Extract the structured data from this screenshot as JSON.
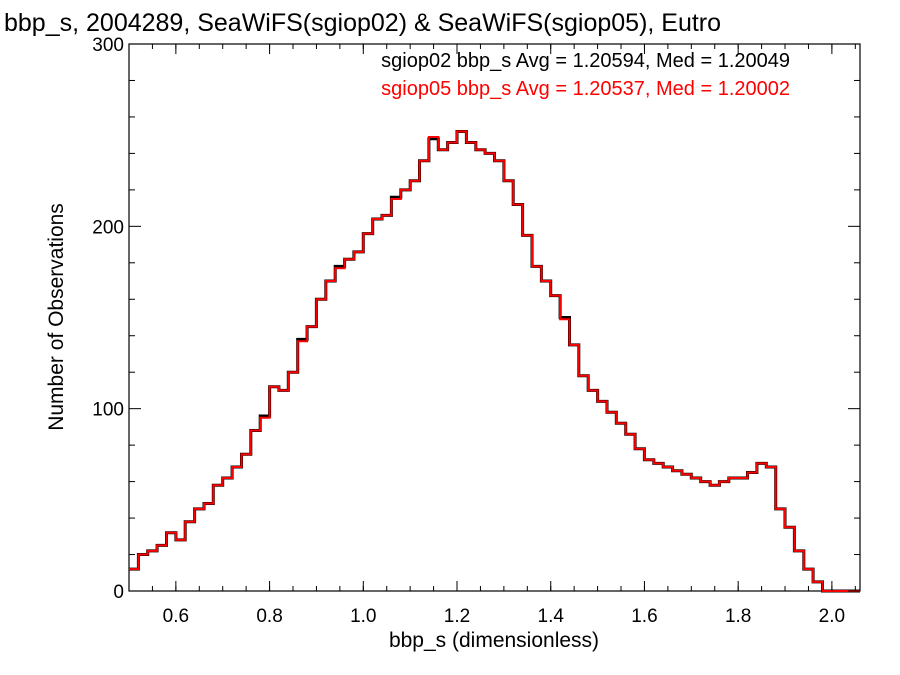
{
  "chart_data": {
    "type": "line",
    "step": true,
    "title": "bbp_s, 2004289, SeaWiFS(sgiop02) & SeaWiFS(sgiop05), Eutro",
    "xlabel": "bbp_s (dimensionless)",
    "ylabel": "Number of Observations",
    "xlim": [
      0.5,
      2.06
    ],
    "ylim": [
      0,
      300
    ],
    "xticks": [
      "0.6",
      "0.8",
      "1.0",
      "1.2",
      "1.4",
      "1.6",
      "1.8",
      "2.0"
    ],
    "yticks": [
      "0",
      "100",
      "200",
      "300"
    ],
    "grid": false,
    "legend_position": "top-right",
    "series": [
      {
        "name": "sgiop02",
        "color": "#000000",
        "legend_text": "sgiop02 bbp_s Avg = 1.20594, Med = 1.20049",
        "x": [
          0.5,
          0.52,
          0.54,
          0.56,
          0.58,
          0.6,
          0.62,
          0.64,
          0.66,
          0.68,
          0.7,
          0.72,
          0.74,
          0.76,
          0.78,
          0.8,
          0.82,
          0.84,
          0.86,
          0.88,
          0.9,
          0.92,
          0.94,
          0.96,
          0.98,
          1.0,
          1.02,
          1.04,
          1.06,
          1.08,
          1.1,
          1.12,
          1.14,
          1.16,
          1.18,
          1.2,
          1.22,
          1.24,
          1.26,
          1.28,
          1.3,
          1.32,
          1.34,
          1.36,
          1.38,
          1.4,
          1.42,
          1.44,
          1.46,
          1.48,
          1.5,
          1.52,
          1.54,
          1.56,
          1.58,
          1.6,
          1.62,
          1.64,
          1.66,
          1.68,
          1.7,
          1.72,
          1.74,
          1.76,
          1.78,
          1.8,
          1.82,
          1.84,
          1.86,
          1.88,
          1.9,
          1.92,
          1.94,
          1.96,
          1.98,
          2.0,
          2.02,
          2.04
        ],
        "values": [
          12,
          20,
          22,
          25,
          32,
          28,
          38,
          45,
          48,
          58,
          62,
          68,
          75,
          88,
          96,
          112,
          110,
          120,
          138,
          145,
          160,
          170,
          178,
          182,
          186,
          196,
          204,
          206,
          216,
          220,
          225,
          236,
          248,
          242,
          246,
          252,
          246,
          242,
          240,
          236,
          225,
          212,
          195,
          178,
          170,
          162,
          150,
          135,
          118,
          110,
          104,
          98,
          92,
          86,
          78,
          72,
          70,
          68,
          66,
          64,
          62,
          60,
          58,
          60,
          62,
          62,
          65,
          70,
          68,
          45,
          35,
          22,
          12,
          5,
          0,
          0,
          0,
          0
        ]
      },
      {
        "name": "sgiop05",
        "color": "#ff0000",
        "legend_text": "sgiop05 bbp_s Avg = 1.20537, Med = 1.20002",
        "x": [
          0.5,
          0.52,
          0.54,
          0.56,
          0.58,
          0.6,
          0.62,
          0.64,
          0.66,
          0.68,
          0.7,
          0.72,
          0.74,
          0.76,
          0.78,
          0.8,
          0.82,
          0.84,
          0.86,
          0.88,
          0.9,
          0.92,
          0.94,
          0.96,
          0.98,
          1.0,
          1.02,
          1.04,
          1.06,
          1.08,
          1.1,
          1.12,
          1.14,
          1.16,
          1.18,
          1.2,
          1.22,
          1.24,
          1.26,
          1.28,
          1.3,
          1.32,
          1.34,
          1.36,
          1.38,
          1.4,
          1.42,
          1.44,
          1.46,
          1.48,
          1.5,
          1.52,
          1.54,
          1.56,
          1.58,
          1.6,
          1.62,
          1.64,
          1.66,
          1.68,
          1.7,
          1.72,
          1.74,
          1.76,
          1.78,
          1.8,
          1.82,
          1.84,
          1.86,
          1.88,
          1.9,
          1.92,
          1.94,
          1.96,
          1.98,
          2.0,
          2.02,
          2.04
        ],
        "values": [
          12,
          20,
          22,
          25,
          32,
          28,
          38,
          45,
          48,
          58,
          62,
          68,
          75,
          88,
          95,
          112,
          110,
          120,
          137,
          145,
          160,
          170,
          177,
          182,
          186,
          196,
          204,
          206,
          215,
          220,
          225,
          236,
          249,
          242,
          246,
          252,
          246,
          242,
          240,
          236,
          225,
          212,
          195,
          178,
          170,
          162,
          149,
          135,
          118,
          110,
          104,
          98,
          92,
          86,
          78,
          72,
          70,
          68,
          66,
          64,
          62,
          60,
          58,
          60,
          62,
          62,
          65,
          70,
          68,
          45,
          35,
          22,
          12,
          5,
          0,
          0,
          0,
          0
        ]
      }
    ]
  }
}
